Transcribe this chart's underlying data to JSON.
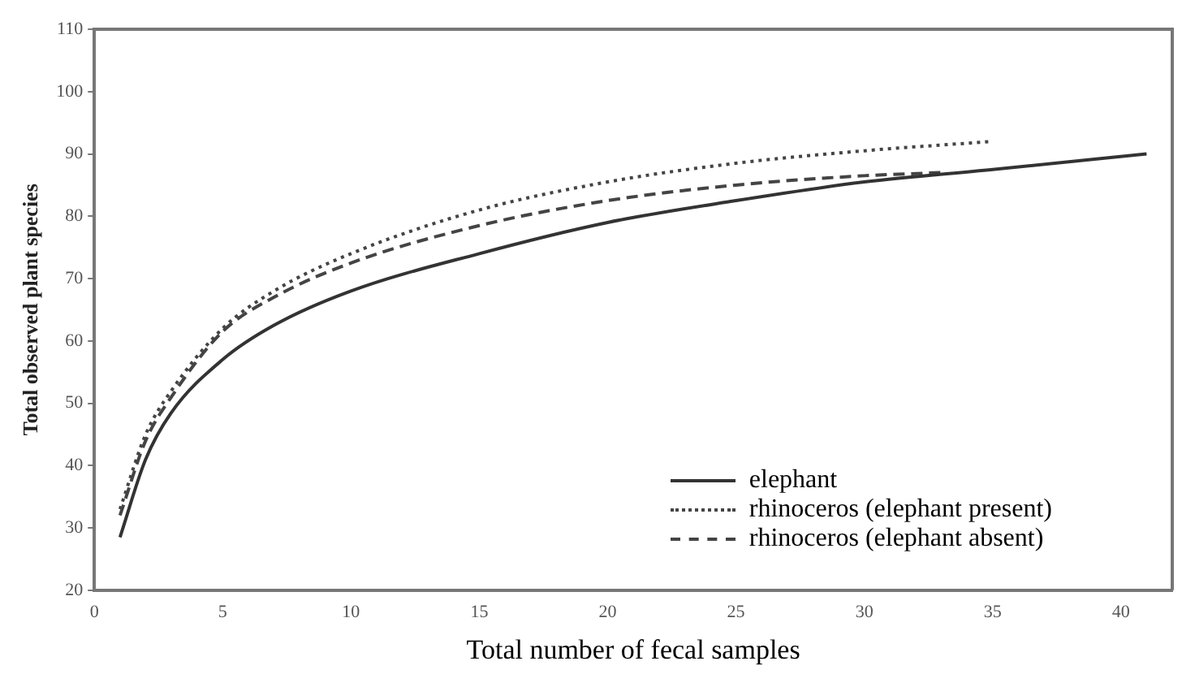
{
  "chart_data": {
    "type": "line",
    "xlabel": "Total number of fecal samples",
    "ylabel": "Total observed plant species",
    "xlim": [
      0,
      42
    ],
    "xticks": [
      0,
      5,
      10,
      15,
      20,
      25,
      30,
      35,
      40
    ],
    "ylim": [
      20,
      110
    ],
    "yticks": [
      20,
      30,
      40,
      50,
      60,
      70,
      80,
      90,
      100,
      110
    ],
    "grid": false,
    "legend": "bottom right",
    "marker": "none",
    "series": [
      {
        "name": "elephant",
        "color": "#333333",
        "line_style": "solid",
        "x": [
          1,
          2,
          3,
          5,
          7,
          10,
          15,
          20,
          25,
          30,
          35,
          41
        ],
        "values": [
          28.5,
          41,
          48.5,
          57,
          62.5,
          68,
          74,
          79,
          82.5,
          85.5,
          87.5,
          90
        ]
      },
      {
        "name": "rhinoceros (elephant present)",
        "color": "#444444",
        "line_style": "dotted",
        "x": [
          1,
          2,
          3,
          5,
          7,
          10,
          15,
          20,
          25,
          30,
          35
        ],
        "values": [
          33,
          45,
          52,
          62,
          68,
          74,
          81,
          85.5,
          88.5,
          90.5,
          92
        ]
      },
      {
        "name": "rhinoceros (elephant absent)",
        "color": "#444444",
        "line_style": "dashed",
        "x": [
          1,
          2,
          3,
          5,
          7,
          10,
          15,
          20,
          25,
          30,
          33
        ],
        "values": [
          32,
          44,
          51,
          61.5,
          67,
          72.5,
          78.5,
          82.5,
          85,
          86.5,
          87
        ]
      }
    ]
  }
}
